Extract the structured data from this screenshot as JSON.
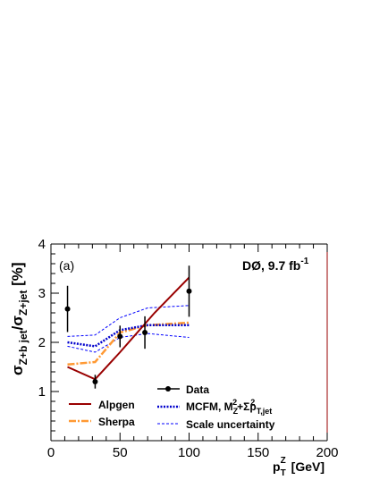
{
  "chart_data": {
    "type": "line",
    "panel_label": "(a)",
    "experiment": {
      "name": "DØ, 9.7 fb",
      "superscript": "-1"
    },
    "xlabel": {
      "base": "p",
      "sub": "T",
      "sup": "Z",
      "unit": " [GeV]"
    },
    "ylabel": {
      "base": "σ",
      "sub_num": "Z+b jet",
      "slash": "/σ",
      "sub_den": "Z+jet",
      "unit": " [%]"
    },
    "xlim": [
      0,
      200
    ],
    "ylim": [
      0,
      4
    ],
    "xticks": [
      0,
      50,
      100,
      150,
      200
    ],
    "yticks": [
      1,
      2,
      3,
      4
    ],
    "colors": {
      "alpgen": "#990000",
      "sherpa": "#ff9933",
      "mcfm": "#0000cc",
      "scale": "#0000ff",
      "data": "#000000",
      "frame_right": "#990000"
    },
    "data_points": {
      "name": "Data",
      "x": [
        12,
        32,
        50,
        68,
        100
      ],
      "y": [
        2.68,
        1.2,
        2.12,
        2.2,
        3.04
      ],
      "yerr": [
        0.47,
        0.14,
        0.22,
        0.33,
        0.52
      ]
    },
    "series": [
      {
        "name": "Alpgen",
        "x": [
          12,
          32,
          50,
          75,
          100
        ],
        "y": [
          1.5,
          1.25,
          1.8,
          2.6,
          3.32
        ]
      },
      {
        "name": "Sherpa",
        "x": [
          12,
          32,
          50,
          70,
          100
        ],
        "y": [
          1.55,
          1.6,
          2.2,
          2.35,
          2.4
        ]
      },
      {
        "name": "MCFM",
        "x": [
          12,
          32,
          50,
          70,
          100
        ],
        "y": [
          2.0,
          1.92,
          2.25,
          2.35,
          2.35
        ]
      },
      {
        "name": "Scale uncertainty upper",
        "x": [
          12,
          32,
          50,
          70,
          100
        ],
        "y": [
          2.12,
          2.15,
          2.5,
          2.7,
          2.75
        ]
      },
      {
        "name": "Scale uncertainty lower",
        "x": [
          12,
          32,
          50,
          70,
          100
        ],
        "y": [
          1.92,
          1.8,
          2.1,
          2.18,
          2.1
        ]
      }
    ],
    "legend": {
      "placement": "bottom",
      "alpgen": "Alpgen",
      "sherpa": "Sherpa",
      "data": "Data",
      "mcfm_prefix": "MCFM, M",
      "mcfm_z_sub": "Z",
      "mcfm_two_sup": "2",
      "mcfm_plus_sigma": "+Σp",
      "mcfm_tjet_sub": "T,jet",
      "mcfm_two_sup2": "2",
      "scale": "Scale uncertainty"
    }
  }
}
